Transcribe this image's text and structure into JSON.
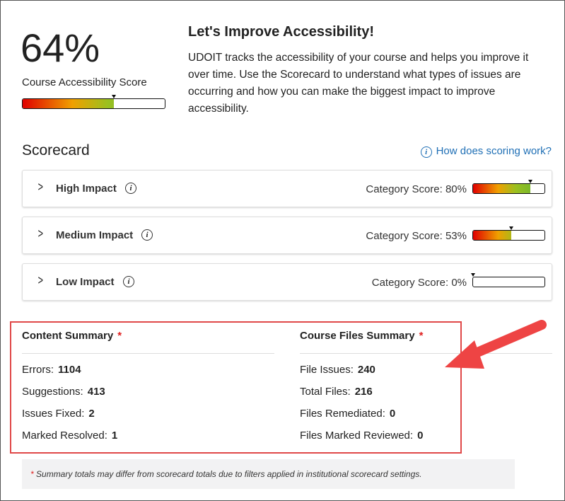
{
  "score": {
    "value": 64,
    "label": "64%"
  },
  "score_caption": "Course Accessibility Score",
  "intro": {
    "title": "Let's Improve Accessibility!",
    "text": "UDOIT tracks the accessibility of your course and helps you improve it over time. Use the Scorecard to understand what types of issues are occurring and how you can make the biggest impact to improve accessibility."
  },
  "scorecard": {
    "title": "Scorecard",
    "help_link": "How does scoring work?",
    "categories": [
      {
        "name": "High Impact",
        "score_label": "Category Score:",
        "score": {
          "value": 80,
          "label": "80%"
        }
      },
      {
        "name": "Medium Impact",
        "score_label": "Category Score:",
        "score": {
          "value": 53,
          "label": "53%"
        }
      },
      {
        "name": "Low Impact",
        "score_label": "Category Score:",
        "score": {
          "value": 0,
          "label": "0%"
        }
      }
    ]
  },
  "summaries": [
    {
      "title": "Content Summary",
      "rows": [
        {
          "label": "Errors:",
          "value": 1104
        },
        {
          "label": "Suggestions:",
          "value": 413
        },
        {
          "label": "Issues Fixed:",
          "value": 2
        },
        {
          "label": "Marked Resolved:",
          "value": 1
        }
      ]
    },
    {
      "title": "Course Files Summary",
      "rows": [
        {
          "label": "File Issues:",
          "value": 240
        },
        {
          "label": "Total Files:",
          "value": 216
        },
        {
          "label": "Files Remediated:",
          "value": 0
        },
        {
          "label": "Files Marked Reviewed:",
          "value": 0
        }
      ]
    }
  ],
  "note": "Summary totals may differ from scorecard totals due to filters applied in institutional scorecard settings."
}
